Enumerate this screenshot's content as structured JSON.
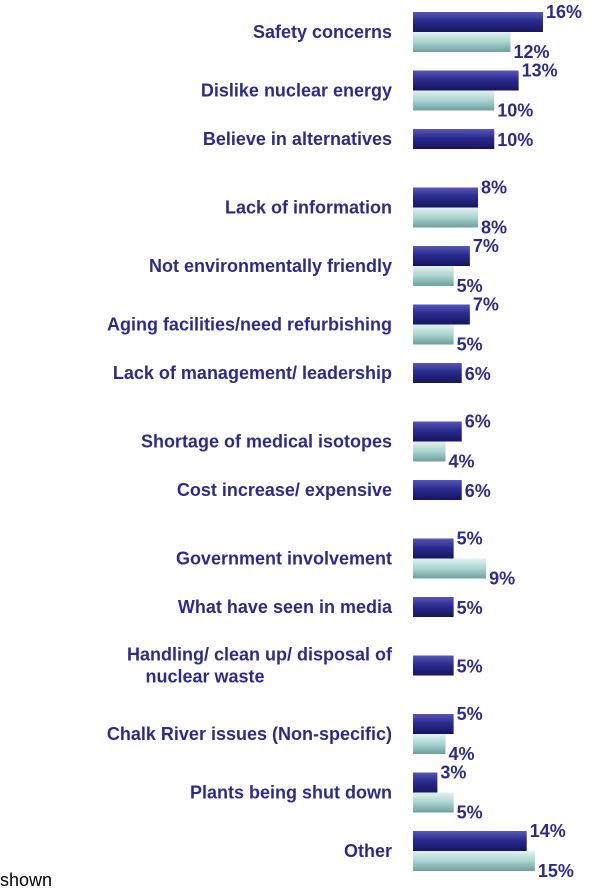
{
  "chart_data": {
    "type": "bar",
    "orientation": "horizontal",
    "unit": "%",
    "categories": [
      "Safety concerns",
      "Dislike nuclear energy",
      "Believe in alternatives",
      "Lack of information",
      "Not environmentally friendly",
      "Aging facilities/need refurbishing",
      "Lack of management/ leadership",
      "Shortage of medical isotopes",
      "Cost increase/ expensive",
      "Government involvement",
      "What have seen in media",
      "Handling/ clean up/ disposal of nuclear waste",
      "Chalk River issues (Non-specific)",
      "Plants being shut down",
      "Other"
    ],
    "category_lines": [
      [
        "Safety concerns"
      ],
      [
        "Dislike nuclear energy"
      ],
      [
        "Believe in alternatives"
      ],
      [
        "Lack of information"
      ],
      [
        "Not environmentally friendly"
      ],
      [
        "Aging facilities/need refurbishing"
      ],
      [
        "Lack of management/ leadership"
      ],
      [
        "Shortage of medical isotopes"
      ],
      [
        "Cost increase/ expensive"
      ],
      [
        "Government involvement"
      ],
      [
        "What have seen in media"
      ],
      [
        "Handling/ clean up/ disposal of",
        "nuclear waste"
      ],
      [
        "Chalk River issues (Non-specific)"
      ],
      [
        "Plants being shut down"
      ],
      [
        "Other"
      ]
    ],
    "series": [
      {
        "color": "#2b2b8f",
        "values": [
          16,
          13,
          10,
          8,
          7,
          7,
          6,
          6,
          6,
          5,
          5,
          5,
          5,
          3,
          14
        ]
      },
      {
        "color": "#a9d4d0",
        "values": [
          12,
          10,
          null,
          8,
          5,
          5,
          null,
          4,
          null,
          9,
          null,
          null,
          4,
          5,
          15
        ]
      }
    ],
    "label_color": "#2b2b8f"
  },
  "footnote": "shown"
}
